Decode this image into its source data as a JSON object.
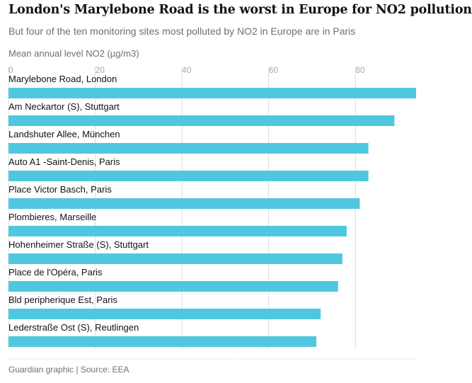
{
  "header": {
    "title": "London's Marylebone Road is the worst in Europe for NO2 pollution",
    "subtitle": "But four of the ten monitoring sites most polluted by NO2 in Europe are in Paris"
  },
  "footer": {
    "source": "Guardian graphic | Source: EEA"
  },
  "colors": {
    "bar": "#4fc8df",
    "grid": "#dcdcdc",
    "tick_text": "#a8a8a8",
    "label_text": "#121212"
  },
  "chart_data": {
    "type": "bar",
    "orientation": "horizontal",
    "title": "London's Marylebone Road is the worst in Europe for NO2 pollution",
    "subtitle": "But four of the ten monitoring sites most polluted by NO2 in Europe are in Paris",
    "xlabel": "Mean annual level NO2 (µg/m3)",
    "xlim": [
      0,
      94
    ],
    "xticks": [
      0,
      20,
      40,
      60,
      80
    ],
    "grid": true,
    "categories": [
      "Marylebone Road, London",
      "Am Neckartor (S), Stuttgart",
      "Landshuter Allee, München",
      "Auto A1 -Saint-Denis, Paris",
      "Place Victor Basch, Paris",
      "Plombieres, Marseille",
      "Hohenheimer Straße (S), Stuttgart",
      "Place de l'Opéra, Paris",
      "Bld peripherique Est, Paris",
      "Lederstraße Ost (S), Reutlingen"
    ],
    "values": [
      94,
      89,
      83,
      83,
      81,
      78,
      77,
      76,
      72,
      71
    ]
  }
}
